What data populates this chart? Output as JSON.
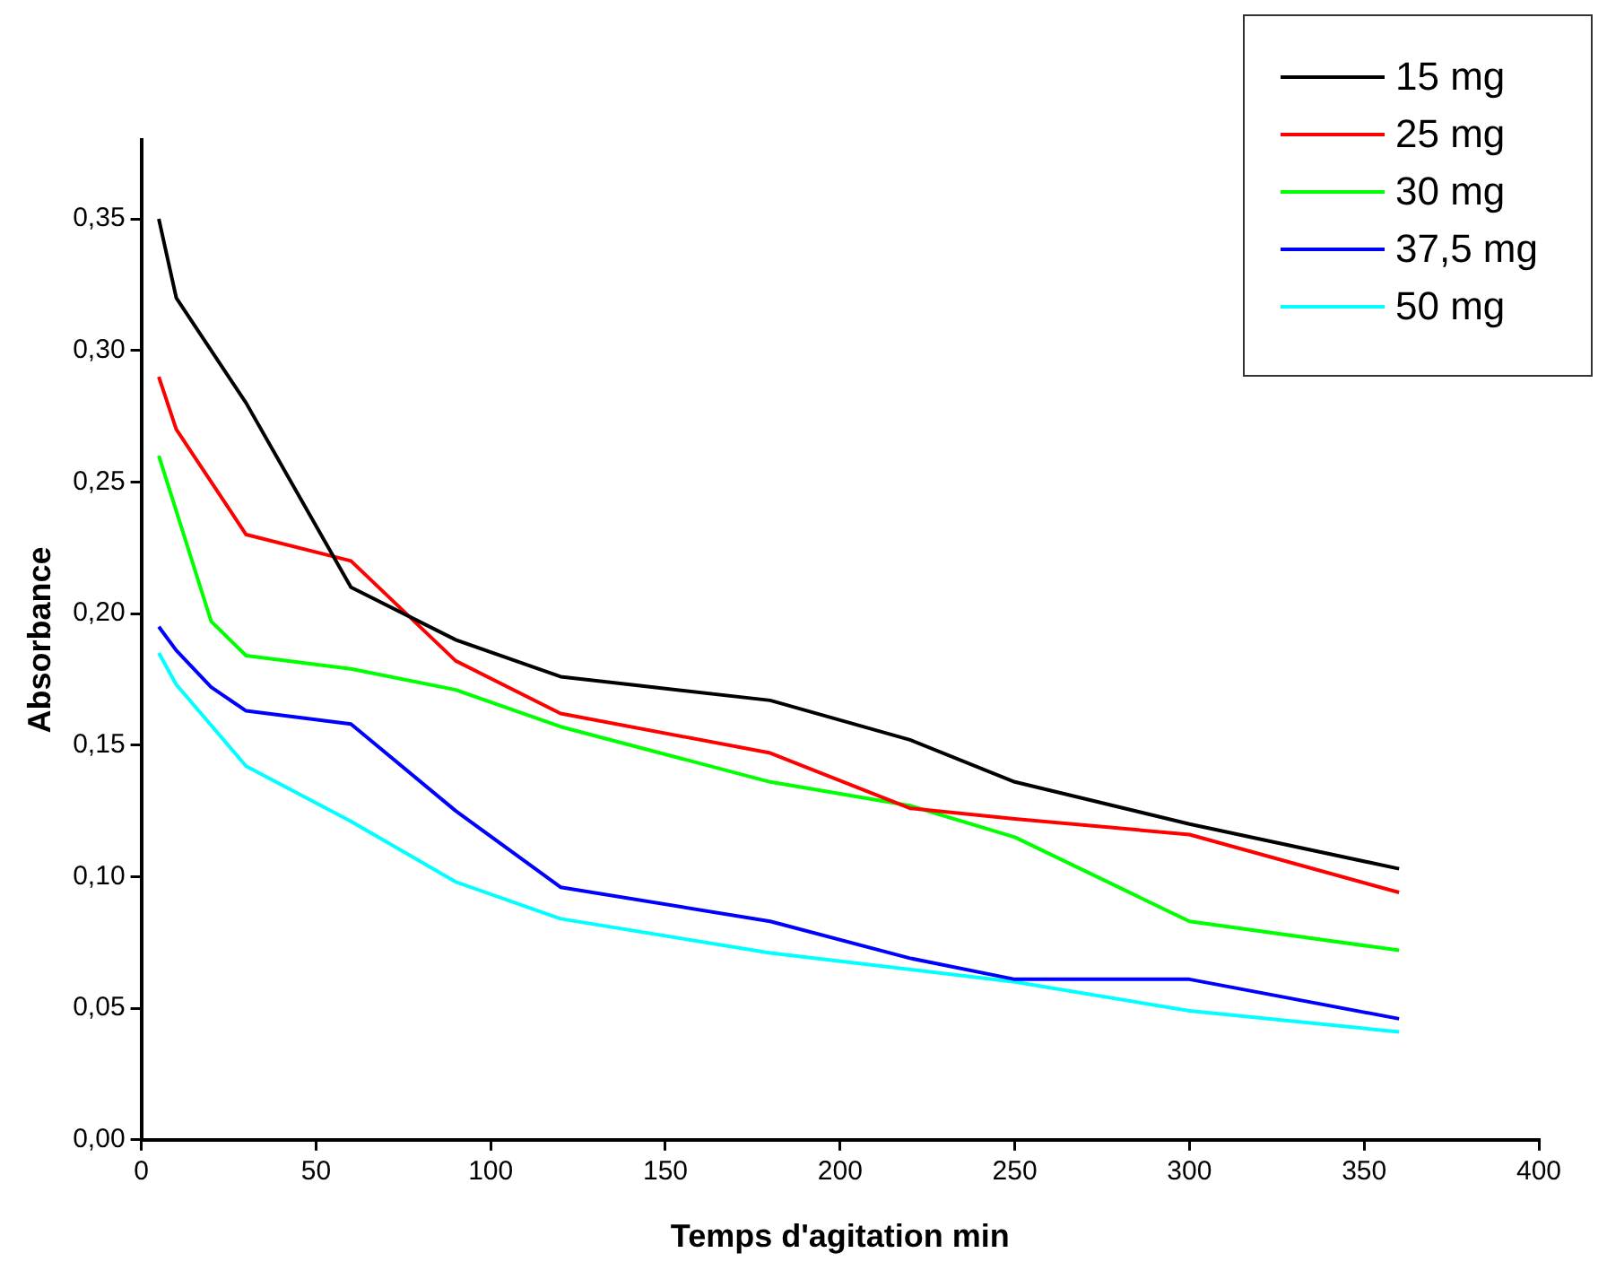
{
  "chart_data": {
    "type": "line",
    "xlabel": "Temps d'agitation min",
    "ylabel": "Absorbance",
    "xlim": [
      0,
      400
    ],
    "ylim": [
      0,
      0.38
    ],
    "xticks": [
      0,
      50,
      100,
      150,
      200,
      250,
      300,
      350,
      400
    ],
    "yticks": [
      {
        "value": 0,
        "label": "0,00"
      },
      {
        "value": 0.05,
        "label": "0,05"
      },
      {
        "value": 0.1,
        "label": "0,10"
      },
      {
        "value": 0.15,
        "label": "0,15"
      },
      {
        "value": 0.2,
        "label": "0,20"
      },
      {
        "value": 0.25,
        "label": "0,25"
      },
      {
        "value": 0.3,
        "label": "0,30"
      },
      {
        "value": 0.35,
        "label": "0,35"
      }
    ],
    "grid": false,
    "legend": "top right",
    "marker": "none",
    "line_style": "solid",
    "series": [
      {
        "name": "15 mg",
        "color": "#000000",
        "x": [
          5,
          10,
          30,
          60,
          90,
          120,
          180,
          220,
          250,
          300,
          360
        ],
        "values": [
          0.35,
          0.32,
          0.28,
          0.21,
          0.19,
          0.176,
          0.167,
          0.152,
          0.136,
          0.12,
          0.103
        ]
      },
      {
        "name": "25 mg",
        "color": "#ff0000",
        "x": [
          5,
          10,
          30,
          60,
          90,
          120,
          180,
          220,
          250,
          300,
          360
        ],
        "values": [
          0.29,
          0.27,
          0.23,
          0.22,
          0.182,
          0.162,
          0.147,
          0.126,
          0.122,
          0.116,
          0.094
        ]
      },
      {
        "name": "30 mg",
        "color": "#00ff00",
        "x": [
          5,
          20,
          30,
          60,
          90,
          120,
          180,
          220,
          250,
          300,
          360
        ],
        "values": [
          0.26,
          0.197,
          0.184,
          0.179,
          0.171,
          0.157,
          0.136,
          0.127,
          0.115,
          0.083,
          0.072
        ]
      },
      {
        "name": "37,5 mg",
        "color": "#0000ff",
        "x": [
          5,
          10,
          20,
          30,
          60,
          90,
          120,
          180,
          220,
          250,
          300,
          360
        ],
        "values": [
          0.195,
          0.186,
          0.172,
          0.163,
          0.158,
          0.125,
          0.096,
          0.083,
          0.069,
          0.061,
          0.061,
          0.046
        ]
      },
      {
        "name": "50 mg",
        "color": "#00ffff",
        "x": [
          5,
          10,
          30,
          60,
          90,
          120,
          180,
          250,
          300,
          360
        ],
        "values": [
          0.185,
          0.173,
          0.142,
          0.121,
          0.098,
          0.084,
          0.071,
          0.06,
          0.049,
          0.041
        ]
      }
    ]
  }
}
